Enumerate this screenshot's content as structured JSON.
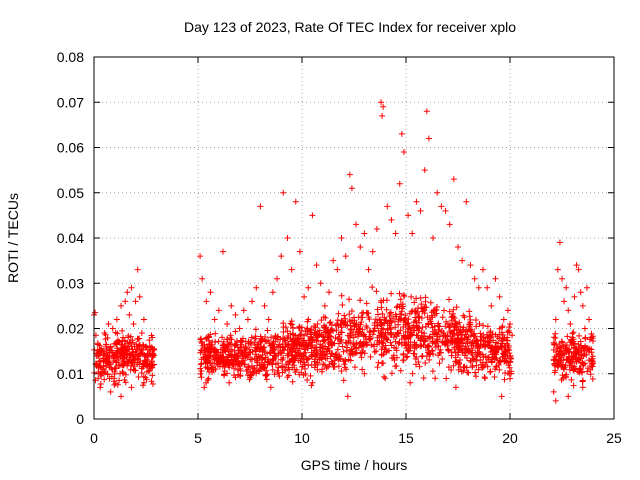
{
  "chart_data": {
    "type": "scatter",
    "title": "Day 123 of 2023, Rate Of TEC Index for receiver xplo",
    "xlabel": "GPS time / hours",
    "ylabel": "ROTI / TECUs",
    "xlim": [
      0,
      25
    ],
    "ylim": [
      0,
      0.08
    ],
    "x_ticks": [
      "0",
      "5",
      "10",
      "15",
      "20",
      "25"
    ],
    "y_ticks": [
      "0",
      "0.01",
      "0.02",
      "0.03",
      "0.04",
      "0.05",
      "0.06",
      "0.07",
      "0.08"
    ],
    "grid": true,
    "marker": "+",
    "marker_color": "#ff0000",
    "data_coverage_hours": [
      [
        0,
        2.9
      ],
      [
        5.1,
        20.1
      ],
      [
        22.1,
        24.0
      ]
    ],
    "series": [
      {
        "points": [
          [
            0.0,
            0.023
          ],
          [
            0.05,
            0.0235
          ],
          [
            0.1,
            0.012
          ],
          [
            0.2,
            0.009
          ],
          [
            0.3,
            0.015
          ],
          [
            0.4,
            0.011
          ],
          [
            0.5,
            0.019
          ],
          [
            0.6,
            0.013
          ],
          [
            0.7,
            0.021
          ],
          [
            0.8,
            0.016
          ],
          [
            0.9,
            0.02
          ],
          [
            1.0,
            0.014
          ],
          [
            1.1,
            0.022
          ],
          [
            1.2,
            0.017
          ],
          [
            1.3,
            0.025
          ],
          [
            1.4,
            0.018
          ],
          [
            1.5,
            0.026
          ],
          [
            1.6,
            0.028
          ],
          [
            1.7,
            0.023
          ],
          [
            1.8,
            0.029
          ],
          [
            1.9,
            0.021
          ],
          [
            2.0,
            0.026
          ],
          [
            2.1,
            0.033
          ],
          [
            2.2,
            0.027
          ],
          [
            2.3,
            0.019
          ],
          [
            2.4,
            0.022
          ],
          [
            2.5,
            0.016
          ],
          [
            2.6,
            0.014
          ],
          [
            2.7,
            0.012
          ],
          [
            2.8,
            0.018
          ],
          [
            0.3,
            0.007
          ],
          [
            0.8,
            0.006
          ],
          [
            1.3,
            0.005
          ],
          [
            1.8,
            0.007
          ],
          [
            2.4,
            0.008
          ],
          [
            5.1,
            0.036
          ],
          [
            5.2,
            0.031
          ],
          [
            5.4,
            0.026
          ],
          [
            5.6,
            0.028
          ],
          [
            5.8,
            0.022
          ],
          [
            6.0,
            0.024
          ],
          [
            6.2,
            0.037
          ],
          [
            6.4,
            0.021
          ],
          [
            6.6,
            0.025
          ],
          [
            6.8,
            0.023
          ],
          [
            7.0,
            0.02
          ],
          [
            7.2,
            0.024
          ],
          [
            7.4,
            0.022
          ],
          [
            7.6,
            0.026
          ],
          [
            7.8,
            0.029
          ],
          [
            8.0,
            0.047
          ],
          [
            8.2,
            0.025
          ],
          [
            8.4,
            0.022
          ],
          [
            8.6,
            0.028
          ],
          [
            8.8,
            0.031
          ],
          [
            9.0,
            0.036
          ],
          [
            9.1,
            0.05
          ],
          [
            9.3,
            0.04
          ],
          [
            9.5,
            0.033
          ],
          [
            9.7,
            0.048
          ],
          [
            9.9,
            0.037
          ],
          [
            10.1,
            0.027
          ],
          [
            10.3,
            0.029
          ],
          [
            10.5,
            0.045
          ],
          [
            10.7,
            0.034
          ],
          [
            10.9,
            0.03
          ],
          [
            11.1,
            0.025
          ],
          [
            11.3,
            0.028
          ],
          [
            11.5,
            0.035
          ],
          [
            11.7,
            0.033
          ],
          [
            11.9,
            0.04
          ],
          [
            12.1,
            0.036
          ],
          [
            12.3,
            0.054
          ],
          [
            12.4,
            0.051
          ],
          [
            12.6,
            0.043
          ],
          [
            12.8,
            0.038
          ],
          [
            13.0,
            0.041
          ],
          [
            13.2,
            0.033
          ],
          [
            13.4,
            0.037
          ],
          [
            13.6,
            0.042
          ],
          [
            13.8,
            0.07
          ],
          [
            13.85,
            0.067
          ],
          [
            13.9,
            0.069
          ],
          [
            14.1,
            0.047
          ],
          [
            14.3,
            0.044
          ],
          [
            14.5,
            0.041
          ],
          [
            14.7,
            0.052
          ],
          [
            14.8,
            0.063
          ],
          [
            14.9,
            0.059
          ],
          [
            15.1,
            0.045
          ],
          [
            15.3,
            0.041
          ],
          [
            15.5,
            0.048
          ],
          [
            15.7,
            0.046
          ],
          [
            15.9,
            0.055
          ],
          [
            16.0,
            0.068
          ],
          [
            16.1,
            0.062
          ],
          [
            16.3,
            0.04
          ],
          [
            16.5,
            0.05
          ],
          [
            16.7,
            0.047
          ],
          [
            16.9,
            0.046
          ],
          [
            17.1,
            0.043
          ],
          [
            17.3,
            0.053
          ],
          [
            17.5,
            0.038
          ],
          [
            17.7,
            0.035
          ],
          [
            17.9,
            0.048
          ],
          [
            18.1,
            0.034
          ],
          [
            18.3,
            0.031
          ],
          [
            18.5,
            0.029
          ],
          [
            18.7,
            0.033
          ],
          [
            18.9,
            0.029
          ],
          [
            19.1,
            0.025
          ],
          [
            19.3,
            0.031
          ],
          [
            19.5,
            0.027
          ],
          [
            19.7,
            0.022
          ],
          [
            19.9,
            0.024
          ],
          [
            20.0,
            0.021
          ],
          [
            5.3,
            0.007
          ],
          [
            6.5,
            0.008
          ],
          [
            8.5,
            0.007
          ],
          [
            10.5,
            0.008
          ],
          [
            12.2,
            0.005
          ],
          [
            13.0,
            0.01
          ],
          [
            14.0,
            0.009
          ],
          [
            15.2,
            0.008
          ],
          [
            16.4,
            0.009
          ],
          [
            17.4,
            0.007
          ],
          [
            18.8,
            0.009
          ],
          [
            19.6,
            0.005
          ],
          [
            22.1,
            0.006
          ],
          [
            22.2,
            0.022
          ],
          [
            22.3,
            0.033
          ],
          [
            22.4,
            0.039
          ],
          [
            22.5,
            0.031
          ],
          [
            22.6,
            0.026
          ],
          [
            22.7,
            0.029
          ],
          [
            22.8,
            0.024
          ],
          [
            22.9,
            0.021
          ],
          [
            23.0,
            0.018
          ],
          [
            23.1,
            0.027
          ],
          [
            23.2,
            0.034
          ],
          [
            23.3,
            0.033
          ],
          [
            23.4,
            0.028
          ],
          [
            23.5,
            0.025
          ],
          [
            23.6,
            0.02
          ],
          [
            23.7,
            0.029
          ],
          [
            23.8,
            0.022
          ],
          [
            23.9,
            0.018
          ],
          [
            22.2,
            0.004
          ],
          [
            22.8,
            0.005
          ],
          [
            23.5,
            0.007
          ]
        ]
      }
    ]
  }
}
